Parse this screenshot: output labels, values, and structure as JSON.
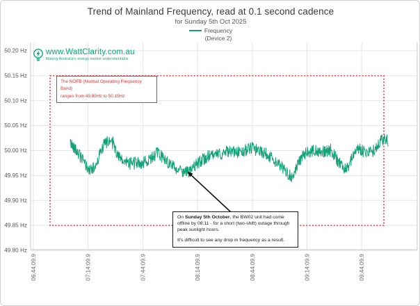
{
  "header": {
    "title": "Trend of Mainland Frequency, read at 0.1 second cadence",
    "subtitle": "for Sunday 5th Oct 2025"
  },
  "legend": {
    "label": "Frequency",
    "sublabel": "(Device 2)"
  },
  "branding": {
    "url": "www.WattClarity.com.au",
    "tagline": "Making Australia's energy market understandable"
  },
  "annotations": {
    "nofb_note": {
      "line1": "The NOFB  (Normal Operating Frequency Band)",
      "line2": "ranges from 49.85Hz to 50.15Hz"
    },
    "event_note": {
      "p1_prefix": "On ",
      "p1_bold": "Sunday 5th October",
      "p1_rest": ", the BW02 unit had come offline by 08:11 - for a short (two-shift) outage through peak sunlight hours.",
      "p2": "It's difficult to see any drop in frequency as a result."
    }
  },
  "colors": {
    "series_green": "#11a377",
    "brand_green": "#00a878",
    "nofb_red": "#ee2e2e",
    "grid": "#e5e5e5",
    "axis": "#c9c9c9",
    "text_dark": "#3a3a3a",
    "text_muted": "#5a5a5a"
  },
  "chart_data": {
    "type": "line",
    "title": "Trend of Mainland Frequency, read at 0.1 second cadence",
    "subtitle": "for Sunday 5th Oct 2025",
    "y_unit": "Hz",
    "ylim": [
      49.8,
      50.2
    ],
    "y_tick_labels": [
      "50.20 Hz",
      "50.15 Hz",
      "50.10 Hz",
      "50.05 Hz",
      "50.00 Hz",
      "49.95 Hz",
      "49.90 Hz",
      "49.85 Hz",
      "49.80 Hz"
    ],
    "y_tick_values": [
      50.2,
      50.15,
      50.1,
      50.05,
      50.0,
      49.95,
      49.9,
      49.85,
      49.8
    ],
    "x_tick_labels": [
      "06:44:09.9",
      "07:14:09.9",
      "07:44:09.9",
      "08:14:09.9",
      "08:44:09.9",
      "09:14:09.9",
      "09:44:09.9"
    ],
    "grid": true,
    "legend": {
      "position": "top",
      "entries": [
        "Frequency (Device 2)"
      ]
    },
    "nofb_band": {
      "low_hz": 49.85,
      "high_hz": 50.15
    },
    "series": [
      {
        "name": "Frequency (Device 2)",
        "color": "#11a377",
        "noise_amplitude_hz": 0.012,
        "approx_value_range_hz": [
          49.945,
          50.035
        ],
        "trend_points": [
          [
            0.0,
            50.015
          ],
          [
            0.015,
            50.005
          ],
          [
            0.035,
            49.985
          ],
          [
            0.059,
            49.96
          ],
          [
            0.077,
            49.965
          ],
          [
            0.094,
            49.995
          ],
          [
            0.109,
            50.015
          ],
          [
            0.131,
            50.022
          ],
          [
            0.149,
            49.99
          ],
          [
            0.164,
            49.978
          ],
          [
            0.197,
            49.976
          ],
          [
            0.23,
            49.975
          ],
          [
            0.252,
            49.985
          ],
          [
            0.274,
            49.995
          ],
          [
            0.295,
            49.985
          ],
          [
            0.317,
            49.972
          ],
          [
            0.339,
            49.962
          ],
          [
            0.361,
            49.958
          ],
          [
            0.376,
            49.956
          ],
          [
            0.394,
            49.97
          ],
          [
            0.416,
            49.982
          ],
          [
            0.438,
            49.99
          ],
          [
            0.459,
            49.99
          ],
          [
            0.481,
            49.995
          ],
          [
            0.503,
            50.0
          ],
          [
            0.525,
            49.995
          ],
          [
            0.547,
            50.0
          ],
          [
            0.569,
            50.005
          ],
          [
            0.591,
            50.0
          ],
          [
            0.613,
            49.995
          ],
          [
            0.635,
            49.985
          ],
          [
            0.652,
            49.975
          ],
          [
            0.667,
            49.965
          ],
          [
            0.683,
            49.955
          ],
          [
            0.696,
            49.948
          ],
          [
            0.709,
            49.96
          ],
          [
            0.726,
            49.985
          ],
          [
            0.744,
            49.995
          ],
          [
            0.766,
            50.0
          ],
          [
            0.788,
            49.998
          ],
          [
            0.81,
            50.0
          ],
          [
            0.827,
            49.995
          ],
          [
            0.845,
            49.975
          ],
          [
            0.862,
            49.965
          ],
          [
            0.875,
            49.968
          ],
          [
            0.893,
            49.995
          ],
          [
            0.908,
            50.005
          ],
          [
            0.93,
            49.995
          ],
          [
            0.952,
            49.998
          ],
          [
            0.974,
            50.015
          ],
          [
            0.989,
            50.025
          ],
          [
            1.0,
            50.02
          ]
        ]
      }
    ]
  }
}
